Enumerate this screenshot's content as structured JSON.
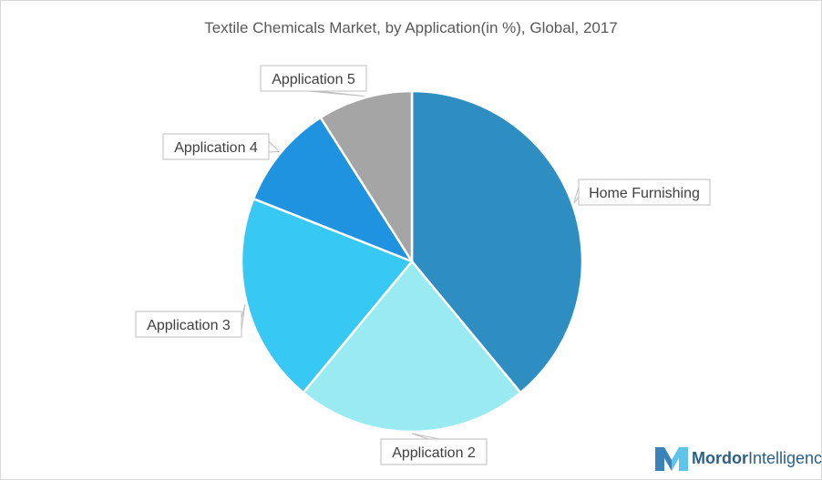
{
  "chart_data": {
    "type": "pie",
    "title": "Textile Chemicals Market, by Application(in %), Global, 2017",
    "slices": [
      {
        "label": "Home Furnishing",
        "value": 39,
        "color": "#2e8ec2"
      },
      {
        "label": "Application 2",
        "value": 22,
        "color": "#9aeaf2"
      },
      {
        "label": "Application 3",
        "value": 20,
        "color": "#38c8f4"
      },
      {
        "label": "Application 4",
        "value": 10,
        "color": "#1f93e0"
      },
      {
        "label": "Application 5",
        "value": 9,
        "color": "#a5a5a5"
      }
    ],
    "start_angle_deg": 0,
    "direction": "clockwise",
    "legend": "none",
    "labels": "callouts"
  },
  "brand": {
    "name_bold": "Mordor",
    "name_light": "Intelligence",
    "logo_icon": "mordor-logo-icon"
  }
}
